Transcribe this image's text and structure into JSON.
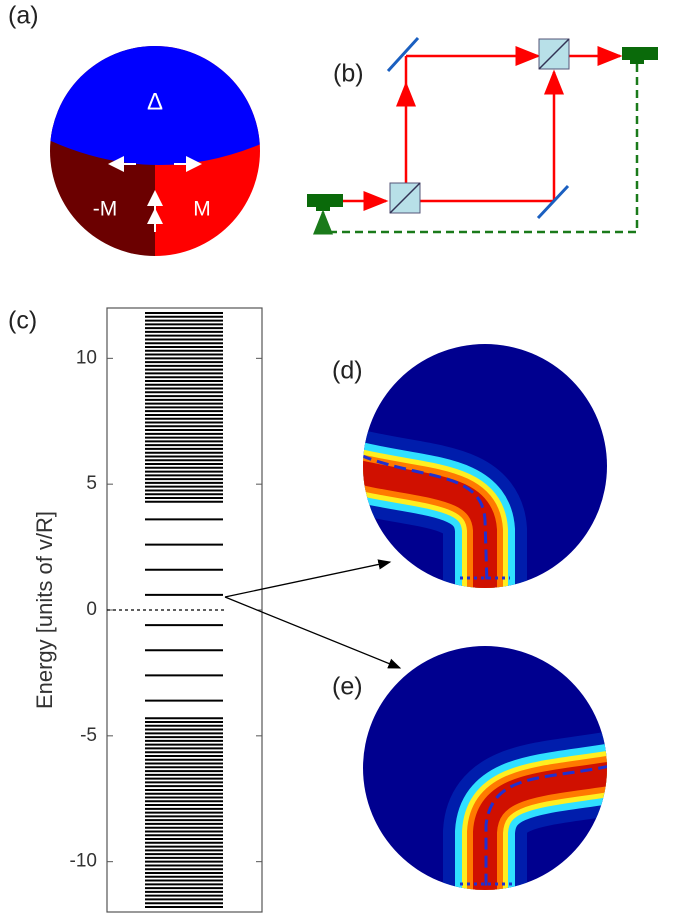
{
  "panels": {
    "a": {
      "label": "(a)",
      "top": "Δ",
      "left": "-M",
      "right": "M"
    },
    "b": {
      "label": "(b)"
    },
    "d": {
      "label": "(d)"
    },
    "e": {
      "label": "(e)"
    }
  },
  "chart_data": {
    "type": "levels",
    "label": "(c)",
    "y_label": "Energy [units of v/R]",
    "ylim": [
      -12,
      12
    ],
    "yticks": [
      10,
      5,
      0,
      -5,
      -10
    ],
    "reference_line": 0,
    "color": "#000000",
    "values": [
      0.6,
      1.6,
      2.6,
      3.6,
      4.3,
      4.45,
      4.6,
      4.75,
      4.9,
      5.05,
      5.2,
      5.35,
      5.5,
      5.65,
      5.8,
      5.95,
      6.1,
      6.25,
      6.4,
      6.55,
      6.7,
      6.85,
      7.0,
      7.15,
      7.3,
      7.45,
      7.6,
      7.75,
      7.9,
      8.05,
      8.2,
      8.35,
      8.5,
      8.65,
      8.8,
      8.95,
      9.1,
      9.25,
      9.4,
      9.55,
      9.7,
      9.85,
      10.0,
      10.15,
      10.3,
      10.45,
      10.6,
      10.75,
      10.9,
      11.05,
      11.2,
      11.35,
      11.5,
      11.65,
      11.8,
      -0.6,
      -1.6,
      -2.6,
      -3.6,
      -4.3,
      -4.45,
      -4.6,
      -4.75,
      -4.9,
      -5.05,
      -5.2,
      -5.35,
      -5.5,
      -5.65,
      -5.8,
      -5.95,
      -6.1,
      -6.25,
      -6.4,
      -6.55,
      -6.7,
      -6.85,
      -7.0,
      -7.15,
      -7.3,
      -7.45,
      -7.6,
      -7.75,
      -7.9,
      -8.05,
      -8.2,
      -8.35,
      -8.5,
      -8.65,
      -8.8,
      -8.95,
      -9.1,
      -9.25,
      -9.4,
      -9.55,
      -9.7,
      -9.85,
      -10.0,
      -10.15,
      -10.3,
      -10.45,
      -10.6,
      -10.75,
      -10.9,
      -11.05,
      -11.2,
      -11.35,
      -11.5,
      -11.65,
      -11.8
    ]
  }
}
